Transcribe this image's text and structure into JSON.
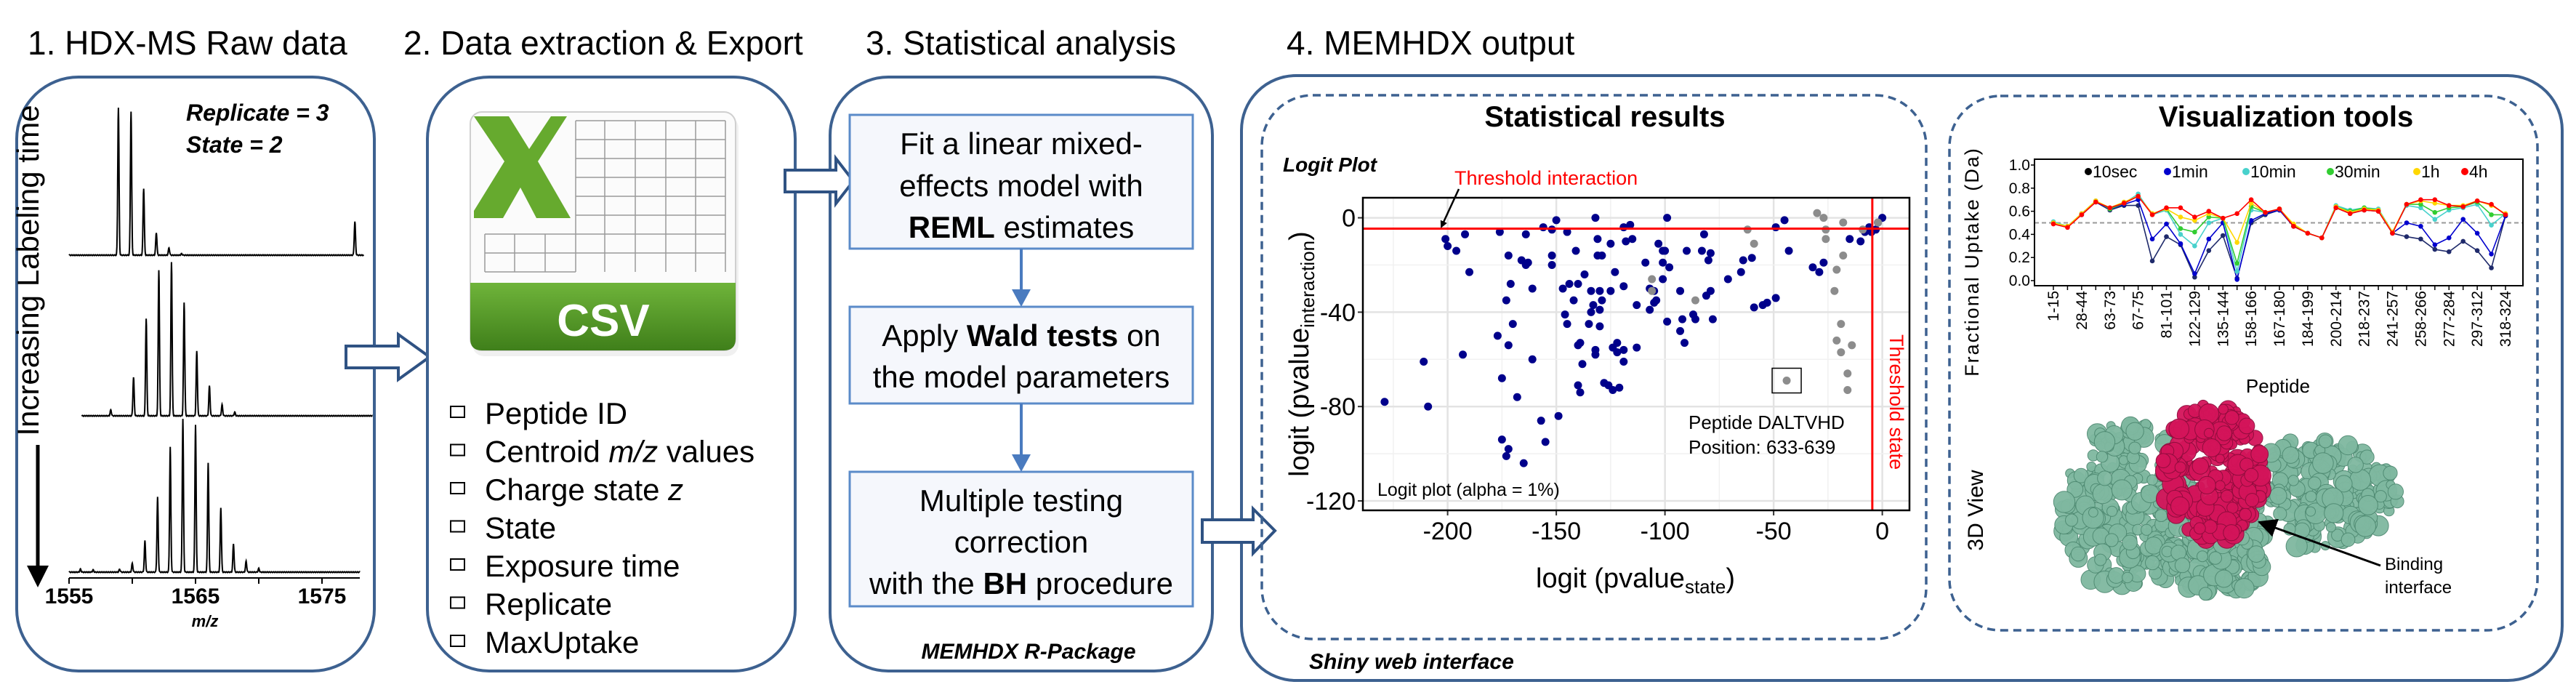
{
  "panel1": {
    "title": "1. HDX-MS Raw data",
    "side_label": "Increasing Labeling time",
    "replicate": "Replicate = 3",
    "state": "State = 2",
    "x_ticks": [
      "1555",
      "1565",
      "1575"
    ],
    "x_label": "m/z"
  },
  "panel2": {
    "title": "2. Data extraction & Export",
    "icon_label": "CSV",
    "items": [
      {
        "text": "Peptide ID"
      },
      {
        "pre": "Centroid ",
        "em": "m/z",
        "post": " values"
      },
      {
        "pre": "Charge state ",
        "em": "z"
      },
      {
        "text": "State"
      },
      {
        "text": "Exposure time"
      },
      {
        "text": "Replicate"
      },
      {
        "text": "MaxUptake"
      }
    ]
  },
  "panel3": {
    "title": "3. Statistical analysis",
    "step1": {
      "line1": "Fit a linear mixed-",
      "line2": "effects model with",
      "bold": "REML",
      "rest": " estimates"
    },
    "step2": {
      "pre": "Apply ",
      "bold": "Wald tests",
      "post": " on",
      "line2": "the model parameters"
    },
    "step3": {
      "line1": "Multiple testing",
      "line2": "correction",
      "pre": "with the ",
      "bold": "BH",
      "post": " procedure"
    },
    "footer": "MEMHDX R-Package"
  },
  "panel4": {
    "title": "4. MEMHDX output",
    "footer": "Shiny web interface",
    "stats_title": "Statistical results",
    "vis_title": "Visualization tools",
    "view3d_label": "3D View",
    "binding_label_1": "Binding",
    "binding_label_2": "interface"
  },
  "chart_data": [
    {
      "type": "scatter",
      "title": "Logit Plot",
      "xlabel": {
        "text": "logit (pvalue",
        "sub": "state",
        "close": ")"
      },
      "ylabel": {
        "text": "logit (pvalue",
        "sub": "interaction",
        "close": ")"
      },
      "xlim": [
        -239,
        12.5
      ],
      "ylim": [
        -124,
        8.5
      ],
      "x_ticks": [
        "-200",
        "-150",
        "-100",
        "-50",
        "0"
      ],
      "y_ticks": [
        "0",
        "-40",
        "-80",
        "-120"
      ],
      "grid": true,
      "thresholds": {
        "interaction": -4.6,
        "state": -4.6,
        "color": "#ff0000"
      },
      "threshold_interaction_label": "Threshold interaction",
      "threshold_state_label": "Threshold state",
      "caption": "Logit plot (alpha = 1%)",
      "annotation": {
        "line1": "Peptide DALTVHD",
        "line2": "Position: 633-639",
        "point": [
          -44,
          -69
        ]
      },
      "series": [
        {
          "color": "#00008b",
          "points": [
            [
              -229,
              -78
            ],
            [
              -211,
              -61
            ],
            [
              -209,
              -80
            ],
            [
              -201,
              -9
            ],
            [
              -200,
              -12
            ],
            [
              -196,
              -14
            ],
            [
              -192,
              -7
            ],
            [
              -193,
              -58
            ],
            [
              -190,
              -23
            ],
            [
              -177,
              -50
            ],
            [
              -176,
              -6
            ],
            [
              -175,
              -68
            ],
            [
              -175,
              -94
            ],
            [
              -173,
              -101
            ],
            [
              -173,
              -35
            ],
            [
              -172,
              -16
            ],
            [
              -172,
              -98
            ],
            [
              -172,
              -54
            ],
            [
              -171,
              -28
            ],
            [
              -170,
              -45
            ],
            [
              -168,
              -76
            ],
            [
              -166,
              -18
            ],
            [
              -165,
              -104
            ],
            [
              -164,
              -20
            ],
            [
              -164,
              -7
            ],
            [
              -163,
              -19
            ],
            [
              -161,
              -30
            ],
            [
              -161,
              -60
            ],
            [
              -157,
              -86
            ],
            [
              -156,
              -4
            ],
            [
              -155,
              -95
            ],
            [
              -152,
              -16
            ],
            [
              -152,
              -5
            ],
            [
              -152,
              -20
            ],
            [
              -150,
              -1
            ],
            [
              -149,
              -84
            ],
            [
              -147,
              -30
            ],
            [
              -146,
              -41
            ],
            [
              -145,
              -6
            ],
            [
              -145,
              -45
            ],
            [
              -144,
              -28
            ],
            [
              -142,
              -35
            ],
            [
              -141,
              -14
            ],
            [
              -140,
              -54
            ],
            [
              -140,
              -28
            ],
            [
              -140,
              -71
            ],
            [
              -139,
              -53
            ],
            [
              -138,
              -62
            ],
            [
              -139,
              -74
            ],
            [
              -137,
              -24
            ],
            [
              -135,
              -45
            ],
            [
              -134,
              -31
            ],
            [
              -134,
              -40
            ],
            [
              -133,
              -37
            ],
            [
              -132,
              -58
            ],
            [
              -132,
              -56
            ],
            [
              -132,
              0
            ],
            [
              -131,
              -9
            ],
            [
              -131,
              -16
            ],
            [
              -130,
              -39
            ],
            [
              -130,
              -46
            ],
            [
              -130,
              -31
            ],
            [
              -129,
              -16
            ],
            [
              -129,
              -35
            ],
            [
              -128,
              -70
            ],
            [
              -126,
              -71
            ],
            [
              -125,
              -31
            ],
            [
              -125,
              -11
            ],
            [
              -124,
              -55
            ],
            [
              -124,
              -73
            ],
            [
              -123,
              -23
            ],
            [
              -122,
              -53
            ],
            [
              -122,
              -57
            ],
            [
              -121,
              -72
            ],
            [
              -119,
              -4
            ],
            [
              -119,
              -29
            ],
            [
              -119,
              -56
            ],
            [
              -119,
              -61
            ],
            [
              -118,
              -10
            ],
            [
              -116,
              -3
            ],
            [
              -115,
              -9
            ],
            [
              -113,
              -37
            ],
            [
              -113,
              -55
            ],
            [
              -109,
              -19
            ],
            [
              -107,
              -39
            ],
            [
              -107,
              -30
            ],
            [
              -105,
              -36
            ],
            [
              -105,
              -31
            ],
            [
              -104,
              -35
            ],
            [
              -103,
              -11
            ],
            [
              -101,
              -14
            ],
            [
              -101,
              -19
            ],
            [
              -101,
              -26
            ],
            [
              -100,
              -14
            ],
            [
              -99,
              0
            ],
            [
              -99,
              -44
            ],
            [
              -98,
              -21
            ],
            [
              -93,
              -31
            ],
            [
              -92,
              -43
            ],
            [
              -93,
              -48
            ],
            [
              -91,
              -53
            ],
            [
              -90,
              -14
            ],
            [
              -87,
              -41
            ],
            [
              -86,
              -43
            ],
            [
              -83,
              -14
            ],
            [
              -82,
              -7
            ],
            [
              -81,
              -33
            ],
            [
              -80,
              -18
            ],
            [
              -79,
              -15
            ],
            [
              -79,
              -31
            ],
            [
              -78,
              -43
            ],
            [
              -71,
              -26
            ],
            [
              -65,
              -23
            ],
            [
              -64,
              -18
            ],
            [
              -60,
              -17
            ],
            [
              -59,
              -38
            ],
            [
              -55,
              -37
            ],
            [
              -53,
              -36
            ],
            [
              -49,
              -4
            ],
            [
              -49,
              -34
            ],
            [
              -45,
              -1
            ],
            [
              -43,
              -14
            ],
            [
              -32,
              -21
            ],
            [
              -29,
              -23
            ],
            [
              -27,
              -19
            ],
            [
              -15,
              -9
            ],
            [
              -10,
              -10
            ],
            [
              -8,
              -6
            ],
            [
              -6,
              -4
            ],
            [
              -5,
              -6
            ],
            [
              -3,
              -5
            ],
            [
              -2,
              -2
            ],
            [
              0,
              0
            ]
          ]
        },
        {
          "color": "#8c8c8c",
          "points": [
            [
              -106,
              -26
            ],
            [
              -106,
              -31
            ],
            [
              -86,
              -35
            ],
            [
              -62,
              -5
            ],
            [
              -59,
              -11
            ],
            [
              -44,
              -69
            ],
            [
              -30,
              2
            ],
            [
              -27,
              0
            ],
            [
              -26,
              -5
            ],
            [
              -26,
              -9
            ],
            [
              -21,
              -22
            ],
            [
              -22,
              -31
            ],
            [
              -18,
              -16
            ],
            [
              -18,
              -2
            ],
            [
              -19,
              -45
            ],
            [
              -21,
              -52
            ],
            [
              -19,
              -57
            ],
            [
              -14,
              -54
            ],
            [
              -16,
              -66
            ],
            [
              -16,
              -73
            ],
            [
              -9,
              -5
            ],
            [
              -2,
              -2
            ]
          ]
        }
      ]
    },
    {
      "type": "line",
      "xlabel": "Peptide",
      "ylabel": "Fractional Uptake (Da)",
      "ylim": [
        0,
        1.0
      ],
      "y_ticks": [
        "0.0",
        "0.2",
        "0.4",
        "0.6",
        "0.8",
        "1.0"
      ],
      "reference_line": 0.5,
      "legend_position": "top",
      "categories": [
        "1-15",
        "",
        "28-44",
        "",
        "63-73",
        "",
        "67-75",
        "",
        "81-101",
        "",
        "122-129",
        "",
        "135-144",
        "",
        "158-166",
        "",
        "167-180",
        "",
        "184-199",
        "",
        "200-214",
        "",
        "218-237",
        "",
        "241-257",
        "",
        "258-266",
        "",
        "277-284",
        "",
        "297-312",
        "",
        "318-324"
      ],
      "series": [
        {
          "name": "10sec",
          "color": "#1f2a6b",
          "legend_color": "#000000",
          "values": [
            0.5,
            0.47,
            0.57,
            0.68,
            0.61,
            0.65,
            0.65,
            0.17,
            0.38,
            0.31,
            0.03,
            0.26,
            0.39,
            0.02,
            0.5,
            0.57,
            0.61,
            0.47,
            0.41,
            0.37,
            0.63,
            0.58,
            0.61,
            0.6,
            0.41,
            0.38,
            0.36,
            0.27,
            0.25,
            0.34,
            0.26,
            0.11,
            0.56
          ]
        },
        {
          "name": "1min",
          "color": "#0000cd",
          "legend_color": "#0000cd",
          "values": [
            0.5,
            0.47,
            0.57,
            0.68,
            0.62,
            0.66,
            0.7,
            0.36,
            0.49,
            0.32,
            0.06,
            0.36,
            0.5,
            0.01,
            0.52,
            0.58,
            0.61,
            0.47,
            0.41,
            0.37,
            0.64,
            0.59,
            0.62,
            0.61,
            0.41,
            0.5,
            0.47,
            0.31,
            0.37,
            0.53,
            0.41,
            0.23,
            0.56
          ]
        },
        {
          "name": "10min",
          "color": "#48d1cc",
          "legend_color": "#48d1cc",
          "values": [
            0.51,
            0.47,
            0.58,
            0.69,
            0.62,
            0.67,
            0.75,
            0.57,
            0.61,
            0.4,
            0.3,
            0.5,
            0.54,
            0.08,
            0.61,
            0.59,
            0.62,
            0.48,
            0.41,
            0.37,
            0.65,
            0.61,
            0.63,
            0.62,
            0.42,
            0.65,
            0.63,
            0.53,
            0.61,
            0.63,
            0.66,
            0.48,
            0.58
          ]
        },
        {
          "name": "30min",
          "color": "#32cd32",
          "legend_color": "#32cd32",
          "values": [
            0.5,
            0.47,
            0.58,
            0.69,
            0.62,
            0.67,
            0.73,
            0.58,
            0.62,
            0.45,
            0.42,
            0.55,
            0.54,
            0.15,
            0.64,
            0.59,
            0.62,
            0.48,
            0.41,
            0.37,
            0.64,
            0.6,
            0.63,
            0.61,
            0.42,
            0.66,
            0.66,
            0.59,
            0.63,
            0.64,
            0.68,
            0.57,
            0.57
          ]
        },
        {
          "name": "1h",
          "color": "#ffd700",
          "legend_color": "#ffd700",
          "values": [
            0.5,
            0.47,
            0.58,
            0.69,
            0.63,
            0.68,
            0.73,
            0.58,
            0.62,
            0.55,
            0.52,
            0.58,
            0.54,
            0.33,
            0.67,
            0.59,
            0.62,
            0.49,
            0.41,
            0.37,
            0.64,
            0.59,
            0.62,
            0.61,
            0.42,
            0.66,
            0.69,
            0.67,
            0.65,
            0.65,
            0.69,
            0.65,
            0.58
          ]
        },
        {
          "name": "4h",
          "color": "#ff0000",
          "legend_color": "#ff0000",
          "values": [
            0.49,
            0.46,
            0.57,
            0.68,
            0.63,
            0.67,
            0.73,
            0.57,
            0.63,
            0.63,
            0.55,
            0.6,
            0.54,
            0.58,
            0.7,
            0.59,
            0.62,
            0.47,
            0.41,
            0.37,
            0.63,
            0.58,
            0.61,
            0.6,
            0.41,
            0.66,
            0.7,
            0.7,
            0.65,
            0.64,
            0.69,
            0.66,
            0.57
          ]
        }
      ]
    }
  ],
  "colors": {
    "frame": "#3d6190",
    "csv_green": "#5c9e2a",
    "protein_green": "#7fb8a0",
    "protein_pink": "#d4145a"
  }
}
